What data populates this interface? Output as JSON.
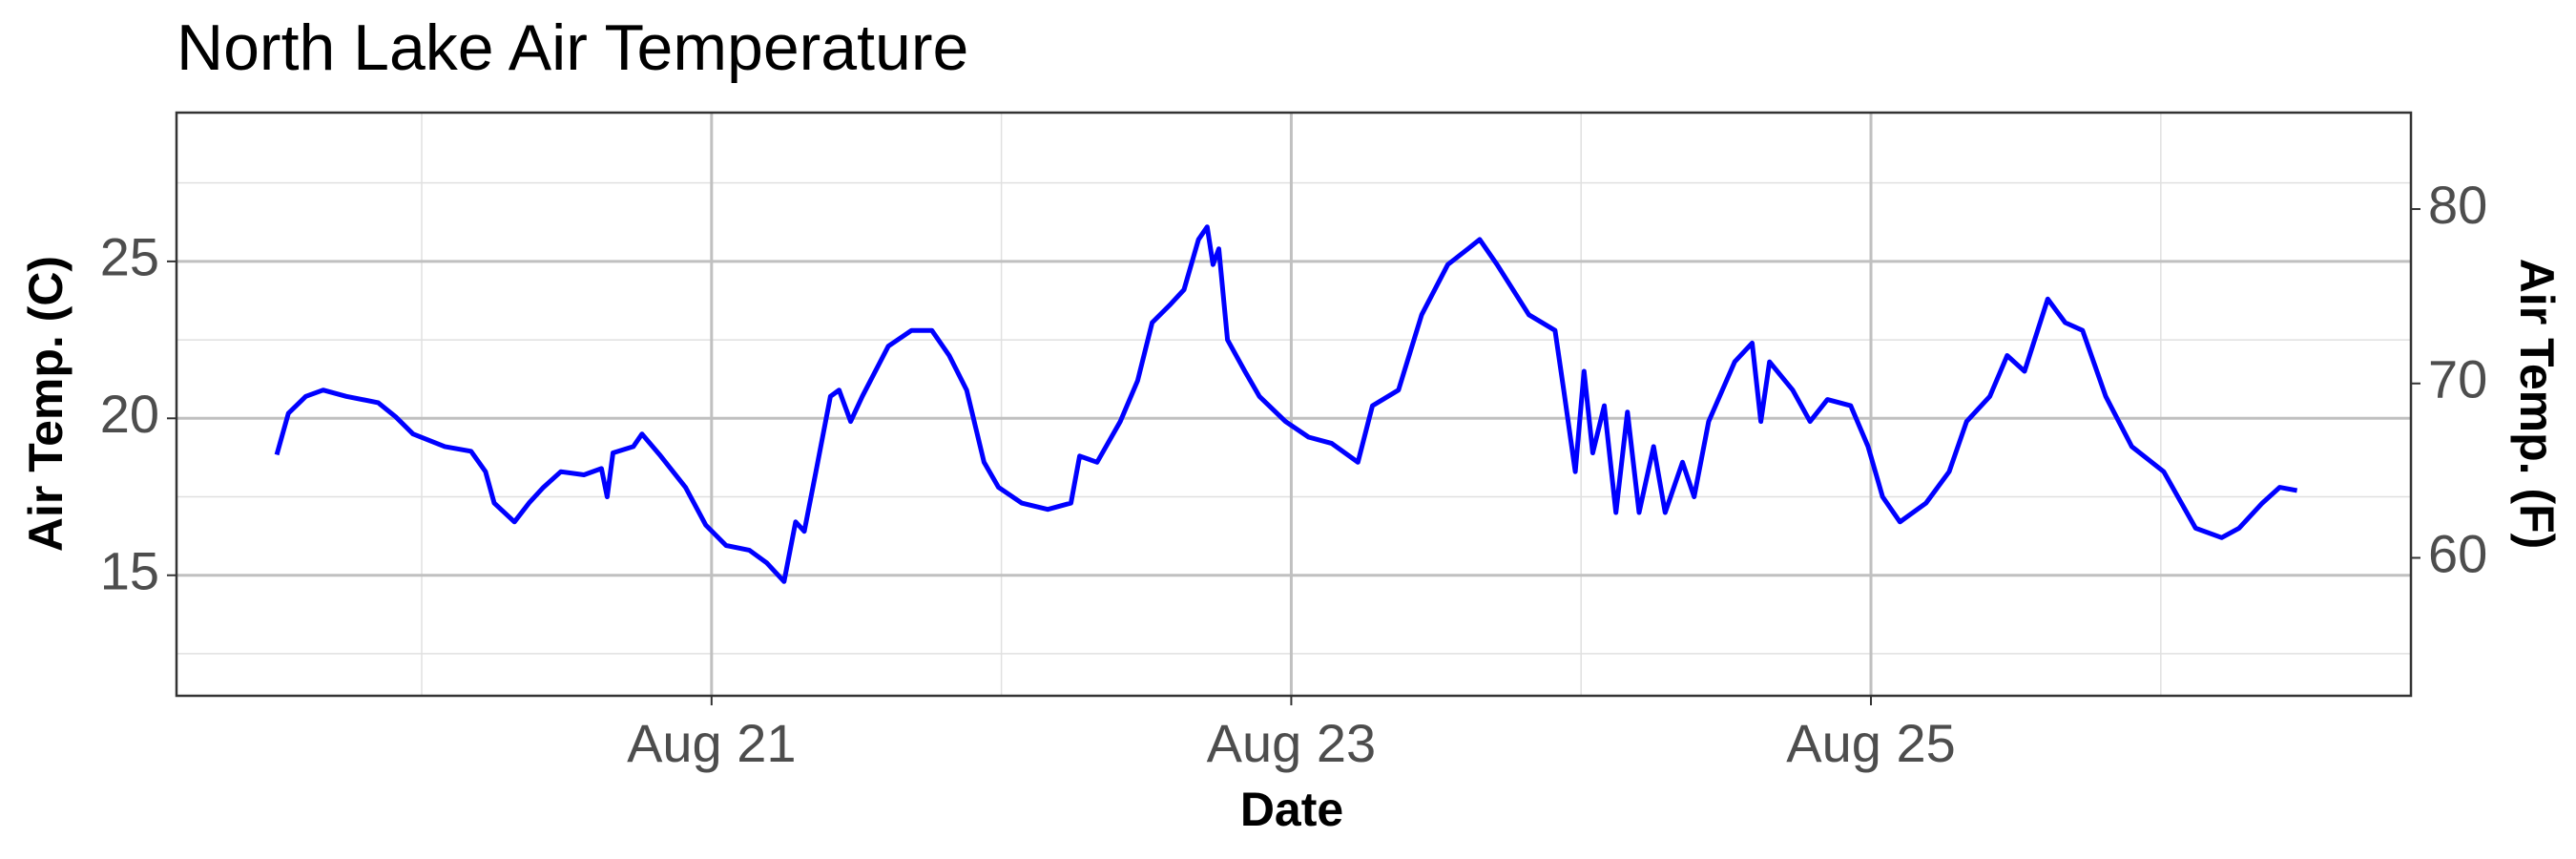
{
  "chart_data": {
    "type": "line",
    "title": "North Lake Air Temperature",
    "xlabel": "Date",
    "ylabel": "Air Temp. (C)",
    "y2label": "Air Temp. (F)",
    "x": [
      19.5,
      19.54,
      19.6,
      19.66,
      19.74,
      19.85,
      19.91,
      19.97,
      20.08,
      20.17,
      20.22,
      20.25,
      20.32,
      20.37,
      20.42,
      20.48,
      20.56,
      20.62,
      20.64,
      20.66,
      20.73,
      20.76,
      20.82,
      20.91,
      20.98,
      21.05,
      21.13,
      21.19,
      21.25,
      21.29,
      21.32,
      21.36,
      21.41,
      21.44,
      21.48,
      21.52,
      21.61,
      21.69,
      21.76,
      21.82,
      21.88,
      21.94,
      21.99,
      22.07,
      22.16,
      22.24,
      22.27,
      22.33,
      22.41,
      22.47,
      22.52,
      22.58,
      22.63,
      22.68,
      22.71,
      22.73,
      22.75,
      22.78,
      22.84,
      22.89,
      22.98,
      23.06,
      23.14,
      23.23,
      23.28,
      23.37,
      23.45,
      23.54,
      23.61,
      23.65,
      23.71,
      23.82,
      23.91,
      23.94,
      23.98,
      24.01,
      24.04,
      24.08,
      24.12,
      24.16,
      24.2,
      24.25,
      24.29,
      24.35,
      24.39,
      24.44,
      24.53,
      24.59,
      24.62,
      24.65,
      24.73,
      24.79,
      24.85,
      24.93,
      24.99,
      25.04,
      25.1,
      25.19,
      25.27,
      25.33,
      25.41,
      25.47,
      25.53,
      25.61,
      25.67,
      25.73,
      25.81,
      25.9,
      26.01,
      26.12,
      26.21,
      26.27,
      26.35,
      26.41,
      26.47
    ],
    "series": [
      {
        "name": "Air Temp. (C)",
        "color": "#0000ff",
        "values": [
          18.84,
          20.16,
          20.7,
          20.9,
          20.7,
          20.5,
          20.05,
          19.5,
          19.1,
          18.95,
          18.3,
          17.3,
          16.7,
          17.3,
          17.8,
          18.3,
          18.2,
          18.4,
          17.5,
          18.9,
          19.1,
          19.5,
          18.85,
          17.8,
          16.6,
          15.95,
          15.8,
          15.4,
          14.8,
          16.7,
          16.4,
          18.3,
          20.7,
          20.9,
          19.9,
          20.7,
          22.3,
          22.8,
          22.8,
          22.0,
          20.9,
          18.6,
          17.8,
          17.3,
          17.1,
          17.3,
          18.8,
          18.6,
          19.9,
          21.2,
          23.05,
          23.6,
          24.1,
          25.7,
          26.1,
          24.9,
          25.4,
          22.5,
          21.5,
          20.7,
          19.9,
          19.4,
          19.2,
          18.6,
          20.4,
          20.9,
          23.3,
          24.9,
          25.4,
          25.7,
          24.9,
          23.3,
          22.8,
          20.9,
          18.3,
          21.5,
          18.9,
          20.4,
          17.0,
          20.2,
          17.0,
          19.1,
          17.0,
          18.6,
          17.5,
          19.9,
          21.8,
          22.4,
          19.9,
          21.8,
          20.9,
          19.9,
          20.6,
          20.4,
          19.1,
          17.5,
          16.7,
          17.3,
          18.3,
          19.9,
          20.7,
          22.0,
          21.5,
          23.8,
          23.05,
          22.8,
          20.7,
          19.1,
          18.3,
          16.5,
          16.2,
          16.5,
          17.3,
          17.8,
          17.7
        ]
      }
    ],
    "xlim": [
      19.154,
      26.863
    ],
    "xticks": [
      {
        "value": 21,
        "label": "Aug 21"
      },
      {
        "value": 23,
        "label": "Aug 23"
      },
      {
        "value": 25,
        "label": "Aug 25"
      }
    ],
    "x_minor_ticks": [
      20,
      22,
      24,
      26
    ],
    "ylim": [
      11.16,
      29.74
    ],
    "yticks": [
      15,
      20,
      25
    ],
    "y_minor_ticks": [
      12.5,
      17.5,
      22.5,
      27.5
    ],
    "y2lim": [
      52.09,
      85.53
    ],
    "y2ticks": [
      60,
      70,
      80
    ],
    "grid": true
  }
}
